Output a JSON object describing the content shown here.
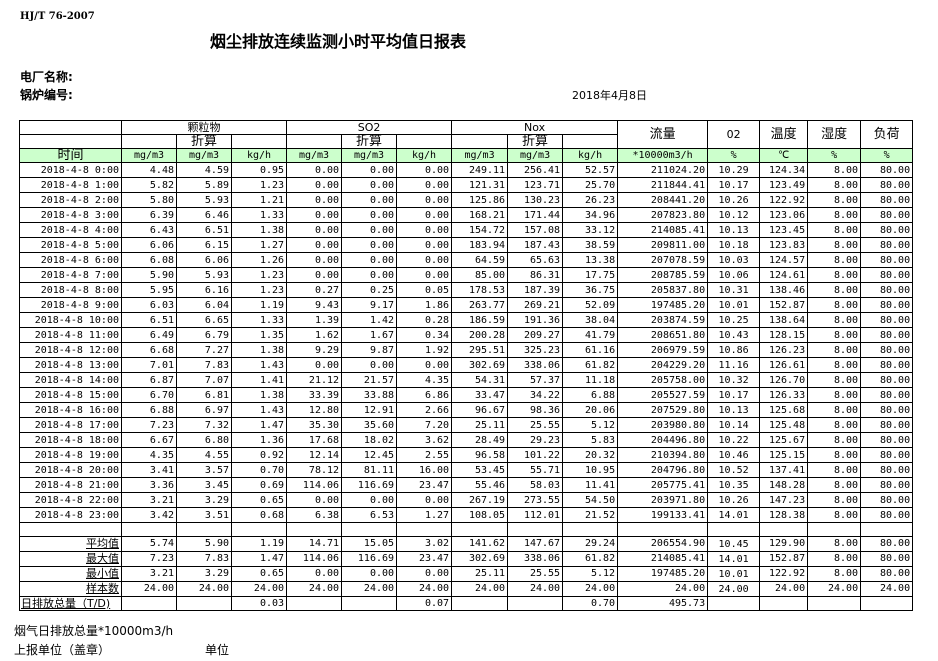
{
  "standard": "HJ/T  76-2007",
  "title": "烟尘排放连续监测小时平均值日报表",
  "plant_label": "电厂名称:",
  "boiler_label": "锅炉编号:",
  "date": "2018年4月8日",
  "header": {
    "groups": [
      "颗粒物",
      "SO2",
      "Nox"
    ],
    "converted": "折算",
    "flow": "流量",
    "o2": "02",
    "temp": "温度",
    "humidity": "湿度",
    "load": "负荷",
    "time": "时间",
    "units": [
      "mg/m3",
      "mg/m3",
      "kg/h",
      "mg/m3",
      "mg/m3",
      "kg/h",
      "mg/m3",
      "mg/m3",
      "kg/h",
      "*10000m3/h",
      "%",
      "℃",
      "%",
      "%"
    ]
  },
  "rows": [
    [
      "2018-4-8 0:00",
      "4.48",
      "4.59",
      "0.95",
      "0.00",
      "0.00",
      "0.00",
      "249.11",
      "256.41",
      "52.57",
      "211024.20",
      "10.29",
      "124.34",
      "8.00",
      "80.00"
    ],
    [
      "2018-4-8 1:00",
      "5.82",
      "5.89",
      "1.23",
      "0.00",
      "0.00",
      "0.00",
      "121.31",
      "123.71",
      "25.70",
      "211844.41",
      "10.17",
      "123.49",
      "8.00",
      "80.00"
    ],
    [
      "2018-4-8 2:00",
      "5.80",
      "5.93",
      "1.21",
      "0.00",
      "0.00",
      "0.00",
      "125.86",
      "130.23",
      "26.23",
      "208441.20",
      "10.26",
      "122.92",
      "8.00",
      "80.00"
    ],
    [
      "2018-4-8 3:00",
      "6.39",
      "6.46",
      "1.33",
      "0.00",
      "0.00",
      "0.00",
      "168.21",
      "171.44",
      "34.96",
      "207823.80",
      "10.12",
      "123.06",
      "8.00",
      "80.00"
    ],
    [
      "2018-4-8 4:00",
      "6.43",
      "6.51",
      "1.38",
      "0.00",
      "0.00",
      "0.00",
      "154.72",
      "157.08",
      "33.12",
      "214085.41",
      "10.13",
      "123.45",
      "8.00",
      "80.00"
    ],
    [
      "2018-4-8 5:00",
      "6.06",
      "6.15",
      "1.27",
      "0.00",
      "0.00",
      "0.00",
      "183.94",
      "187.43",
      "38.59",
      "209811.00",
      "10.18",
      "123.83",
      "8.00",
      "80.00"
    ],
    [
      "2018-4-8 6:00",
      "6.08",
      "6.06",
      "1.26",
      "0.00",
      "0.00",
      "0.00",
      "64.59",
      "65.63",
      "13.38",
      "207078.59",
      "10.03",
      "124.57",
      "8.00",
      "80.00"
    ],
    [
      "2018-4-8 7:00",
      "5.90",
      "5.93",
      "1.23",
      "0.00",
      "0.00",
      "0.00",
      "85.00",
      "86.31",
      "17.75",
      "208785.59",
      "10.06",
      "124.61",
      "8.00",
      "80.00"
    ],
    [
      "2018-4-8 8:00",
      "5.95",
      "6.16",
      "1.23",
      "0.27",
      "0.25",
      "0.05",
      "178.53",
      "187.39",
      "36.75",
      "205837.80",
      "10.31",
      "138.46",
      "8.00",
      "80.00"
    ],
    [
      "2018-4-8 9:00",
      "6.03",
      "6.04",
      "1.19",
      "9.43",
      "9.17",
      "1.86",
      "263.77",
      "269.21",
      "52.09",
      "197485.20",
      "10.01",
      "152.87",
      "8.00",
      "80.00"
    ],
    [
      "2018-4-8 10:00",
      "6.51",
      "6.65",
      "1.33",
      "1.39",
      "1.42",
      "0.28",
      "186.59",
      "191.36",
      "38.04",
      "203874.59",
      "10.25",
      "138.64",
      "8.00",
      "80.00"
    ],
    [
      "2018-4-8 11:00",
      "6.49",
      "6.79",
      "1.35",
      "1.62",
      "1.67",
      "0.34",
      "200.28",
      "209.27",
      "41.79",
      "208651.80",
      "10.43",
      "128.15",
      "8.00",
      "80.00"
    ],
    [
      "2018-4-8 12:00",
      "6.68",
      "7.27",
      "1.38",
      "9.29",
      "9.87",
      "1.92",
      "295.51",
      "325.23",
      "61.16",
      "206979.59",
      "10.86",
      "126.23",
      "8.00",
      "80.00"
    ],
    [
      "2018-4-8 13:00",
      "7.01",
      "7.83",
      "1.43",
      "0.00",
      "0.00",
      "0.00",
      "302.69",
      "338.06",
      "61.82",
      "204229.20",
      "11.16",
      "126.61",
      "8.00",
      "80.00"
    ],
    [
      "2018-4-8 14:00",
      "6.87",
      "7.07",
      "1.41",
      "21.12",
      "21.57",
      "4.35",
      "54.31",
      "57.37",
      "11.18",
      "205758.00",
      "10.32",
      "126.70",
      "8.00",
      "80.00"
    ],
    [
      "2018-4-8 15:00",
      "6.70",
      "6.81",
      "1.38",
      "33.39",
      "33.88",
      "6.86",
      "33.47",
      "34.22",
      "6.88",
      "205527.59",
      "10.17",
      "126.33",
      "8.00",
      "80.00"
    ],
    [
      "2018-4-8 16:00",
      "6.88",
      "6.97",
      "1.43",
      "12.80",
      "12.91",
      "2.66",
      "96.67",
      "98.36",
      "20.06",
      "207529.80",
      "10.13",
      "125.68",
      "8.00",
      "80.00"
    ],
    [
      "2018-4-8 17:00",
      "7.23",
      "7.32",
      "1.47",
      "35.30",
      "35.60",
      "7.20",
      "25.11",
      "25.55",
      "5.12",
      "203980.80",
      "10.14",
      "125.48",
      "8.00",
      "80.00"
    ],
    [
      "2018-4-8 18:00",
      "6.67",
      "6.80",
      "1.36",
      "17.68",
      "18.02",
      "3.62",
      "28.49",
      "29.23",
      "5.83",
      "204496.80",
      "10.22",
      "125.67",
      "8.00",
      "80.00"
    ],
    [
      "2018-4-8 19:00",
      "4.35",
      "4.55",
      "0.92",
      "12.14",
      "12.45",
      "2.55",
      "96.58",
      "101.22",
      "20.32",
      "210394.80",
      "10.46",
      "125.15",
      "8.00",
      "80.00"
    ],
    [
      "2018-4-8 20:00",
      "3.41",
      "3.57",
      "0.70",
      "78.12",
      "81.11",
      "16.00",
      "53.45",
      "55.71",
      "10.95",
      "204796.80",
      "10.52",
      "137.41",
      "8.00",
      "80.00"
    ],
    [
      "2018-4-8 21:00",
      "3.36",
      "3.45",
      "0.69",
      "114.06",
      "116.69",
      "23.47",
      "55.46",
      "58.03",
      "11.41",
      "205775.41",
      "10.35",
      "148.28",
      "8.00",
      "80.00"
    ],
    [
      "2018-4-8 22:00",
      "3.21",
      "3.29",
      "0.65",
      "0.00",
      "0.00",
      "0.00",
      "267.19",
      "273.55",
      "54.50",
      "203971.80",
      "10.26",
      "147.23",
      "8.00",
      "80.00"
    ],
    [
      "2018-4-8 23:00",
      "3.42",
      "3.51",
      "0.68",
      "6.38",
      "6.53",
      "1.27",
      "108.05",
      "112.01",
      "21.52",
      "199133.41",
      "14.01",
      "128.38",
      "8.00",
      "80.00"
    ]
  ],
  "summary": [
    [
      "平均值",
      "5.74",
      "5.90",
      "1.19",
      "14.71",
      "15.05",
      "3.02",
      "141.62",
      "147.67",
      "29.24",
      "206554.90",
      "10.45",
      "129.90",
      "8.00",
      "80.00"
    ],
    [
      "最大值",
      "7.23",
      "7.83",
      "1.47",
      "114.06",
      "116.69",
      "23.47",
      "302.69",
      "338.06",
      "61.82",
      "214085.41",
      "14.01",
      "152.87",
      "8.00",
      "80.00"
    ],
    [
      "最小值",
      "3.21",
      "3.29",
      "0.65",
      "0.00",
      "0.00",
      "0.00",
      "25.11",
      "25.55",
      "5.12",
      "197485.20",
      "10.01",
      "122.92",
      "8.00",
      "80.00"
    ],
    [
      "样本数",
      "24.00",
      "24.00",
      "24.00",
      "24.00",
      "24.00",
      "24.00",
      "24.00",
      "24.00",
      "24.00",
      "24.00",
      "24.00",
      "24.00",
      "24.00",
      "24.00"
    ]
  ],
  "daily_total": [
    "日排放总量（T/D)",
    "",
    "",
    "0.03",
    "",
    "",
    "0.07",
    "",
    "",
    "0.70",
    "495.73",
    "",
    "",
    "",
    ""
  ],
  "footer": {
    "flue_gas_total": "烟气日排放总量*10000m3/h",
    "reporting_unit": "上报单位（盖章）",
    "unit": "单位"
  },
  "colors": {
    "header_green": "#ccffcc"
  }
}
